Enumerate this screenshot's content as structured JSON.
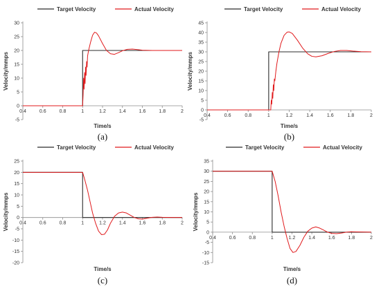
{
  "colors": {
    "target": "#2b2b2b",
    "actual": "#e0191b",
    "axis": "#8c8c8c",
    "text": "#333333"
  },
  "legend": {
    "target_label": "Target Velocity",
    "actual_label": "Actual Velocity"
  },
  "chart_data": [
    {
      "type": "line",
      "caption": "(a)",
      "xlabel": "Time/s",
      "ylabel": "Velocity/mmps",
      "xlim": [
        0.4,
        2
      ],
      "ylim": [
        -5,
        30
      ],
      "xticks": [
        "0.4",
        "0.6",
        "0.8",
        "1",
        "1.2",
        "1.4",
        "1.6",
        "1.8",
        "2"
      ],
      "yticks": [
        "-5",
        "0",
        "5",
        "10",
        "15",
        "20",
        "25",
        "30"
      ],
      "legend_position": "top",
      "series": [
        {
          "name": "Target Velocity",
          "x": [
            0.4,
            1.0,
            1.0,
            2.0
          ],
          "y": [
            0,
            0,
            20,
            20
          ]
        },
        {
          "name": "Actual Velocity",
          "x": [
            0.4,
            1.0,
            1.005,
            1.01,
            1.015,
            1.02,
            1.025,
            1.03,
            1.035,
            1.04,
            1.045,
            1.05,
            1.06,
            1.07,
            1.08,
            1.1,
            1.12,
            1.14,
            1.16,
            1.2,
            1.24,
            1.28,
            1.32,
            1.36,
            1.4,
            1.45,
            1.5,
            1.55,
            1.6,
            1.7,
            1.8,
            1.9,
            2.0
          ],
          "y": [
            0,
            0,
            4,
            10,
            6,
            12,
            8,
            14,
            11,
            16,
            14,
            18,
            20,
            21.5,
            23,
            25.5,
            26.6,
            26.3,
            25.3,
            22.5,
            20,
            18.8,
            18.6,
            19.2,
            19.9,
            20.4,
            20.5,
            20.3,
            20.1,
            20,
            20,
            20,
            20
          ]
        }
      ]
    },
    {
      "type": "line",
      "caption": "(b)",
      "xlabel": "Time/s",
      "ylabel": "Velocity/mmps",
      "xlim": [
        0.4,
        2
      ],
      "ylim": [
        -5,
        45
      ],
      "xticks": [
        "0.4",
        "0.6",
        "0.8",
        "1",
        "1.2",
        "1.4",
        "1.6",
        "1.8",
        "2"
      ],
      "yticks": [
        "-5",
        "0",
        "5",
        "10",
        "15",
        "20",
        "25",
        "30",
        "35",
        "40",
        "45"
      ],
      "legend_position": "top",
      "series": [
        {
          "name": "Target Velocity",
          "x": [
            0.4,
            1.0,
            1.0,
            2.0
          ],
          "y": [
            0,
            0,
            30,
            30
          ]
        },
        {
          "name": "Actual Velocity",
          "x": [
            0.4,
            1.0,
            1.02,
            1.025,
            1.03,
            1.035,
            1.04,
            1.045,
            1.05,
            1.055,
            1.06,
            1.07,
            1.08,
            1.1,
            1.12,
            1.15,
            1.18,
            1.2,
            1.23,
            1.28,
            1.33,
            1.38,
            1.42,
            1.46,
            1.52,
            1.58,
            1.64,
            1.7,
            1.76,
            1.82,
            1.9,
            2.0
          ],
          "y": [
            0,
            0,
            0,
            5,
            3,
            9,
            6,
            13,
            10,
            16,
            15,
            20,
            24,
            30,
            34.5,
            38.5,
            40.2,
            40.3,
            39.5,
            36,
            32,
            29,
            27.7,
            27.4,
            28,
            29.2,
            30.2,
            30.7,
            30.7,
            30.4,
            30.1,
            30
          ]
        }
      ]
    },
    {
      "type": "line",
      "caption": "(c)",
      "xlabel": "Time/s",
      "ylabel": "Velocity/mmps",
      "xlim": [
        0.4,
        2
      ],
      "ylim": [
        -20,
        25
      ],
      "xticks": [
        "0.4",
        "0.6",
        "0.8",
        "1",
        "1.2",
        "1.4",
        "1.6",
        "1.8",
        "2"
      ],
      "yticks": [
        "-20",
        "-15",
        "-10",
        "-5",
        "0",
        "5",
        "10",
        "15",
        "20",
        "25"
      ],
      "legend_position": "top",
      "series": [
        {
          "name": "Target Velocity",
          "x": [
            0.4,
            1.0,
            1.0,
            2.0
          ],
          "y": [
            20,
            20,
            0,
            0
          ]
        },
        {
          "name": "Actual Velocity",
          "x": [
            0.4,
            1.0,
            1.02,
            1.05,
            1.08,
            1.1,
            1.13,
            1.16,
            1.19,
            1.22,
            1.25,
            1.28,
            1.32,
            1.36,
            1.4,
            1.44,
            1.48,
            1.52,
            1.56,
            1.6,
            1.65,
            1.7,
            1.75,
            1.8,
            1.9,
            2.0
          ],
          "y": [
            20,
            20,
            17,
            12,
            6,
            2,
            -2.5,
            -6,
            -7.6,
            -7.4,
            -5.5,
            -2.5,
            0.5,
            2,
            2.4,
            2,
            1,
            0,
            -0.6,
            -0.7,
            -0.3,
            0.1,
            0.2,
            0.1,
            0,
            0
          ]
        }
      ]
    },
    {
      "type": "line",
      "caption": "(d)",
      "xlabel": "Time/s",
      "ylabel": "Velocity/mmps",
      "xlim": [
        0.4,
        2
      ],
      "ylim": [
        -15,
        35
      ],
      "xticks": [
        "0.4",
        "0.6",
        "0.8",
        "1",
        "1.2",
        "1.4",
        "1.6",
        "1.8",
        "2"
      ],
      "yticks": [
        "-15",
        "-10",
        "-5",
        "0",
        "5",
        "10",
        "15",
        "20",
        "25",
        "30",
        "35"
      ],
      "legend_position": "top",
      "series": [
        {
          "name": "Target Velocity",
          "x": [
            0.4,
            1.0,
            1.0,
            2.0
          ],
          "y": [
            30,
            30,
            0,
            0
          ]
        },
        {
          "name": "Actual Velocity",
          "x": [
            0.4,
            1.0,
            1.03,
            1.06,
            1.09,
            1.12,
            1.15,
            1.18,
            1.21,
            1.24,
            1.28,
            1.32,
            1.36,
            1.4,
            1.44,
            1.48,
            1.52,
            1.56,
            1.6,
            1.65,
            1.7,
            1.75,
            1.8,
            1.9,
            2.0
          ],
          "y": [
            30,
            30,
            25,
            18,
            10,
            3,
            -3,
            -8,
            -10,
            -9.5,
            -6.5,
            -2.5,
            0.5,
            2,
            2.6,
            2,
            1,
            0,
            -0.6,
            -0.7,
            -0.4,
            0,
            0.2,
            0.1,
            0
          ]
        }
      ]
    }
  ]
}
